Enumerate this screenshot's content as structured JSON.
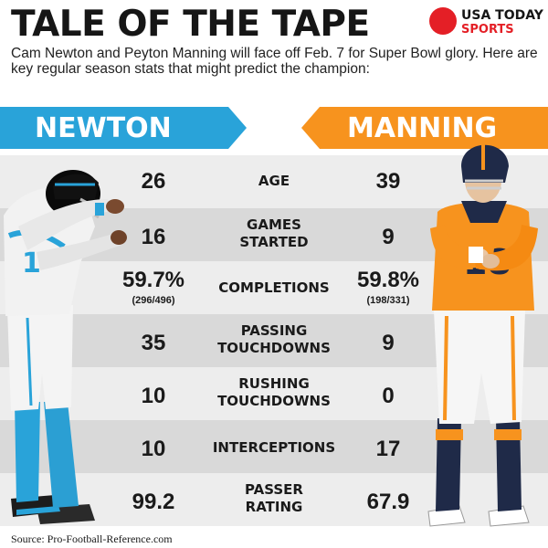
{
  "header": {
    "title": "TALE OF THE TAPE",
    "brand": {
      "line1": "USA TODAY",
      "line2": "SPORTS"
    },
    "intro": "Cam Newton and Peyton Manning will face off Feb. 7 for Super Bowl glory. Here are key regular season stats that might predict the champion:"
  },
  "players": {
    "left": {
      "name": "NEWTON",
      "color": "#29a3d9",
      "jersey": "1"
    },
    "right": {
      "name": "MANNING",
      "color": "#f7931e",
      "jersey": "18"
    }
  },
  "stats": [
    {
      "label": "AGE",
      "left": "26",
      "right": "39"
    },
    {
      "label": "GAMES\nSTARTED",
      "left": "16",
      "right": "9"
    },
    {
      "label": "COMPLETIONS",
      "left": "59.7%",
      "left_sub": "(296/496)",
      "right": "59.8%",
      "right_sub": "(198/331)"
    },
    {
      "label": "PASSING\nTOUCHDOWNS",
      "left": "35",
      "right": "9"
    },
    {
      "label": "RUSHING\nTOUCHDOWNS",
      "left": "10",
      "right": "0"
    },
    {
      "label": "INTERCEPTIONS",
      "left": "10",
      "right": "17"
    },
    {
      "label": "PASSER\nRATING",
      "left": "99.2",
      "right": "67.9"
    }
  ],
  "footer": {
    "source": "Source: Pro-Football-Reference.com"
  }
}
